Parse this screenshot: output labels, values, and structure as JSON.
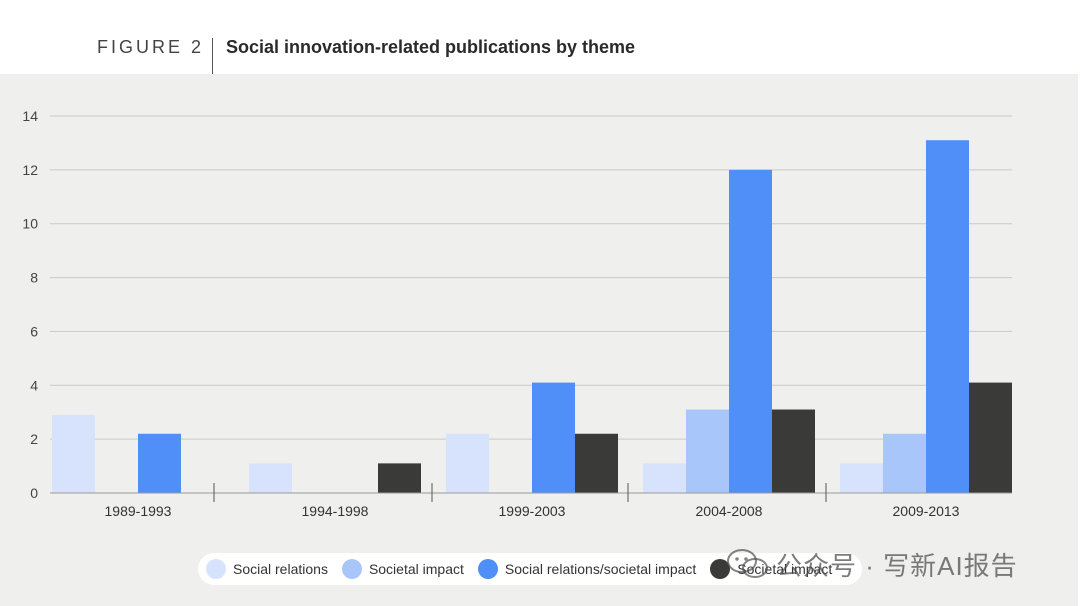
{
  "figure": {
    "label": "FIGURE 2",
    "title": "Social innovation-related publications by theme"
  },
  "colors": {
    "panel_bg": "#efefed",
    "grid": "#c9c9c6",
    "series": [
      "#d7e3fc",
      "#a9c6fb",
      "#4f8ff7",
      "#3a3a39"
    ]
  },
  "chart_data": {
    "type": "bar",
    "title": "Social innovation-related publications by theme",
    "xlabel": "",
    "ylabel": "",
    "ylim": [
      0,
      14
    ],
    "yticks": [
      0,
      2,
      4,
      6,
      8,
      10,
      12,
      14
    ],
    "grid": true,
    "legend_position": "bottom",
    "categories": [
      "1989-1993",
      "1994-1998",
      "1999-2003",
      "2004-2008",
      "2009-2013"
    ],
    "series": [
      {
        "name": "Social relations",
        "values": [
          2.9,
          1.1,
          2.2,
          1.1,
          1.1
        ]
      },
      {
        "name": "Societal impact",
        "values": [
          0,
          0,
          0,
          3.1,
          2.2
        ]
      },
      {
        "name": "Social relations/societal impact",
        "values": [
          2.2,
          0,
          4.1,
          12,
          13.1
        ]
      },
      {
        "name": "Societal impact",
        "values": [
          0,
          1.1,
          2.2,
          3.1,
          4.1
        ]
      }
    ]
  },
  "watermark": {
    "text": "公众号 · 写新AI报告",
    "icon": "wechat-icon"
  }
}
